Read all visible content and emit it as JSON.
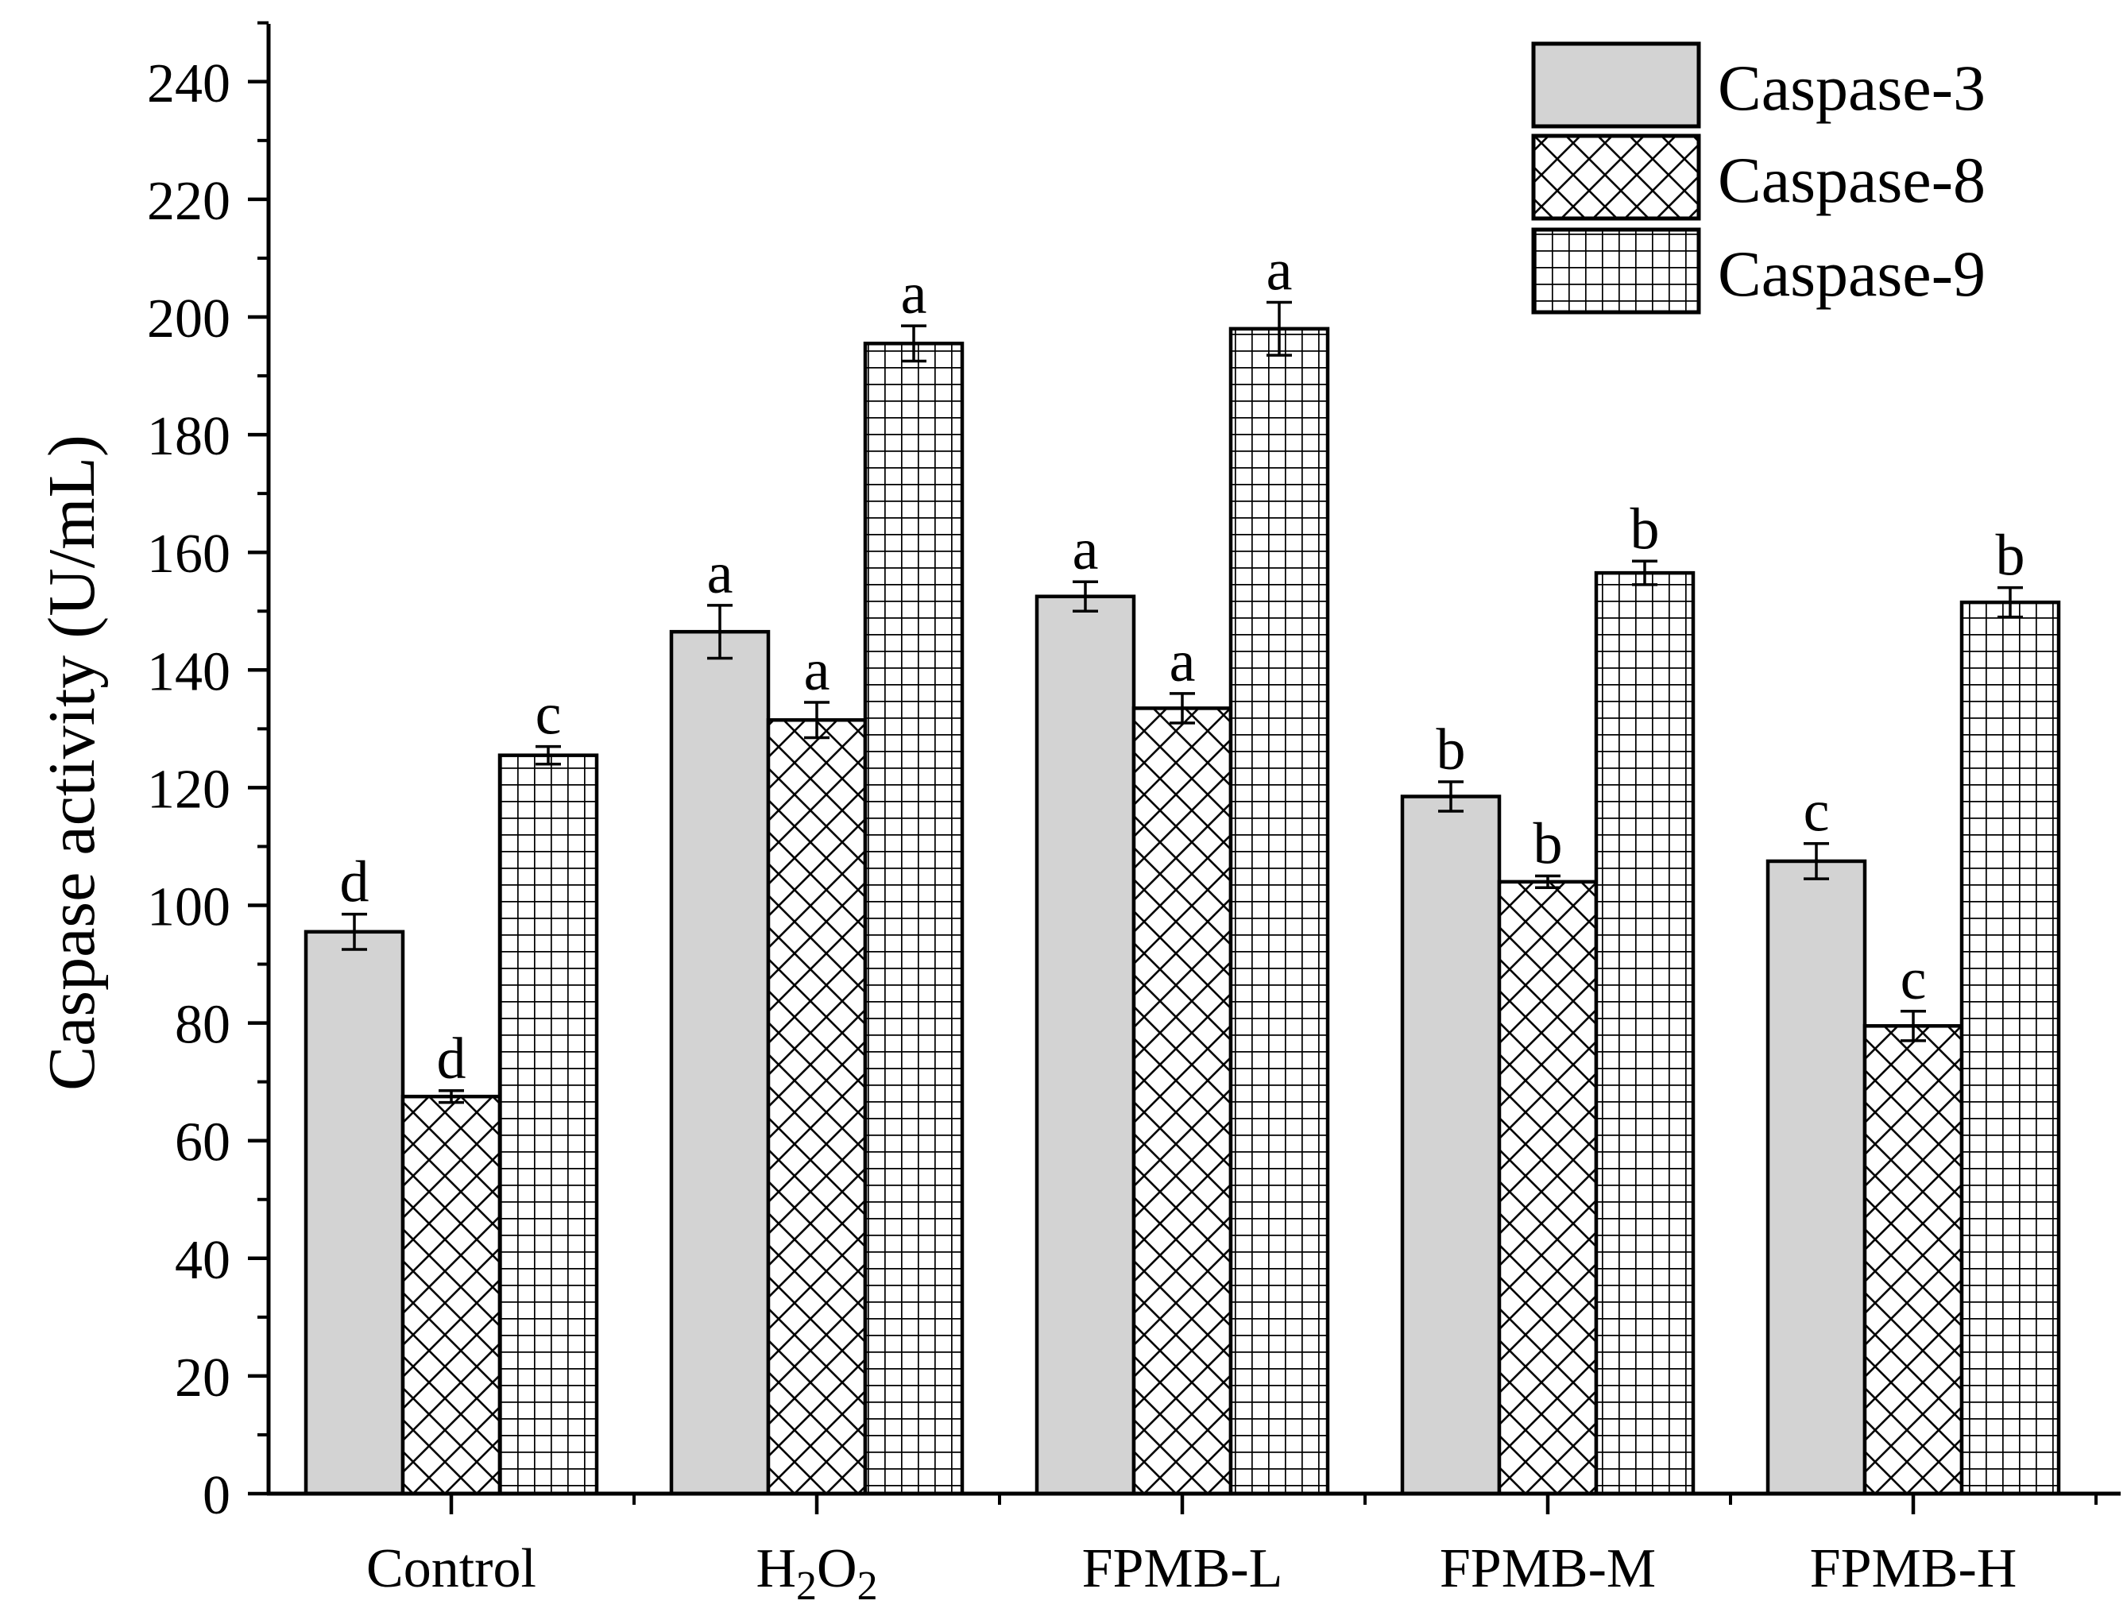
{
  "chart_data": {
    "type": "bar",
    "title": "",
    "xlabel": "",
    "ylabel": "Caspase activity (U/mL)",
    "ylim": [
      0,
      250
    ],
    "yticks": [
      "0",
      "20",
      "40",
      "60",
      "80",
      "100",
      "120",
      "140",
      "160",
      "180",
      "200",
      "220",
      "240"
    ],
    "categories": [
      "Control",
      "H2O2",
      "FPMB-L",
      "FPMB-M",
      "FPMB-H"
    ],
    "legend_position": "top-right",
    "grid": false,
    "series": [
      {
        "name": "Caspase-3",
        "pattern": "solid-gray",
        "values": [
          95.5,
          146.5,
          152.5,
          118.5,
          107.5
        ],
        "errors": [
          3,
          4.5,
          2.5,
          2.5,
          3
        ],
        "letters": [
          "d",
          "a",
          "a",
          "b",
          "c"
        ]
      },
      {
        "name": "Caspase-8",
        "pattern": "diagonal-cross",
        "values": [
          67.5,
          131.5,
          133.5,
          104,
          79.5
        ],
        "errors": [
          1,
          3,
          2.5,
          1,
          2.5
        ],
        "letters": [
          "d",
          "a",
          "a",
          "b",
          "c"
        ]
      },
      {
        "name": "Caspase-9",
        "pattern": "square-grid",
        "values": [
          125.5,
          195.5,
          198,
          156.5,
          151.5
        ],
        "errors": [
          1.5,
          3,
          4.5,
          2,
          2.5
        ],
        "letters": [
          "c",
          "a",
          "a",
          "b",
          "b"
        ]
      }
    ]
  },
  "colors": {
    "bar_fill_solid": "#d3d3d3",
    "pattern_background": "#ffffff",
    "stroke": "#000000"
  }
}
